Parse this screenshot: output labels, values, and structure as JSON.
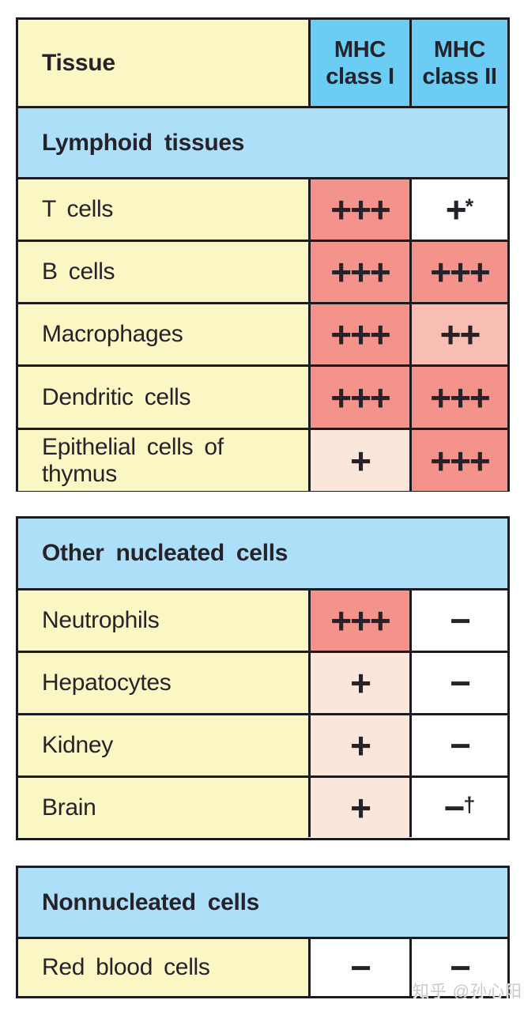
{
  "header": {
    "tissue": "Tissue",
    "mhc1_line1": "MHC",
    "mhc1_line2": "class I",
    "mhc2_line1": "MHC",
    "mhc2_line2": "class II"
  },
  "tables": [
    {
      "section": "Lymphoid tissues",
      "rows": [
        {
          "tissue": "T cells",
          "c1": {
            "sym": "+++",
            "level": "high"
          },
          "c2": {
            "sym": "+",
            "sup": "*",
            "level": "none"
          }
        },
        {
          "tissue": "B cells",
          "c1": {
            "sym": "+++",
            "level": "high"
          },
          "c2": {
            "sym": "+++",
            "level": "high"
          }
        },
        {
          "tissue": "Macrophages",
          "c1": {
            "sym": "+++",
            "level": "high"
          },
          "c2": {
            "sym": "++",
            "level": "medium"
          }
        },
        {
          "tissue": "Dendritic cells",
          "c1": {
            "sym": "+++",
            "level": "high"
          },
          "c2": {
            "sym": "+++",
            "level": "high"
          }
        },
        {
          "tissue": "Epithelial cells of thymus",
          "c1": {
            "sym": "+",
            "level": "low"
          },
          "c2": {
            "sym": "+++",
            "level": "high"
          }
        }
      ]
    },
    {
      "section": "Other nucleated cells",
      "rows": [
        {
          "tissue": "Neutrophils",
          "c1": {
            "sym": "+++",
            "level": "high"
          },
          "c2": {
            "sym": "−",
            "level": "none"
          }
        },
        {
          "tissue": "Hepatocytes",
          "c1": {
            "sym": "+",
            "level": "low"
          },
          "c2": {
            "sym": "−",
            "level": "none"
          }
        },
        {
          "tissue": "Kidney",
          "c1": {
            "sym": "+",
            "level": "low"
          },
          "c2": {
            "sym": "−",
            "level": "none"
          }
        },
        {
          "tissue": "Brain",
          "c1": {
            "sym": "+",
            "level": "low"
          },
          "c2": {
            "sym": "−",
            "sup": "†",
            "level": "none"
          }
        }
      ]
    },
    {
      "section": "Nonnucleated cells",
      "rows": [
        {
          "tissue": "Red blood cells",
          "c1": {
            "sym": "−",
            "level": "none"
          },
          "c2": {
            "sym": "−",
            "level": "none"
          }
        }
      ]
    }
  ],
  "watermark": "知乎 @孙心阳",
  "colors": {
    "header_blue": "#6bcdf4",
    "section_blue": "#addff9",
    "tissue_yellow": "#fbf7c5",
    "expression_high": "#f3938b",
    "expression_medium": "#f8beb4",
    "expression_low": "#fbe6db",
    "expression_none": "#ffffff",
    "border": "#1c1c20",
    "text": "#26222a"
  },
  "chart_data": {
    "type": "table",
    "columns": [
      "Tissue",
      "MHC class I",
      "MHC class II"
    ],
    "sections": [
      {
        "name": "Lymphoid tissues",
        "rows": [
          [
            "T cells",
            "+++",
            "+*"
          ],
          [
            "B cells",
            "+++",
            "+++"
          ],
          [
            "Macrophages",
            "+++",
            "++"
          ],
          [
            "Dendritic cells",
            "+++",
            "+++"
          ],
          [
            "Epithelial cells of thymus",
            "+",
            "+++"
          ]
        ]
      },
      {
        "name": "Other nucleated cells",
        "rows": [
          [
            "Neutrophils",
            "+++",
            "−"
          ],
          [
            "Hepatocytes",
            "+",
            "−"
          ],
          [
            "Kidney",
            "+",
            "−"
          ],
          [
            "Brain",
            "+",
            "−†"
          ]
        ]
      },
      {
        "name": "Nonnucleated cells",
        "rows": [
          [
            "Red blood cells",
            "−",
            "−"
          ]
        ]
      }
    ]
  }
}
